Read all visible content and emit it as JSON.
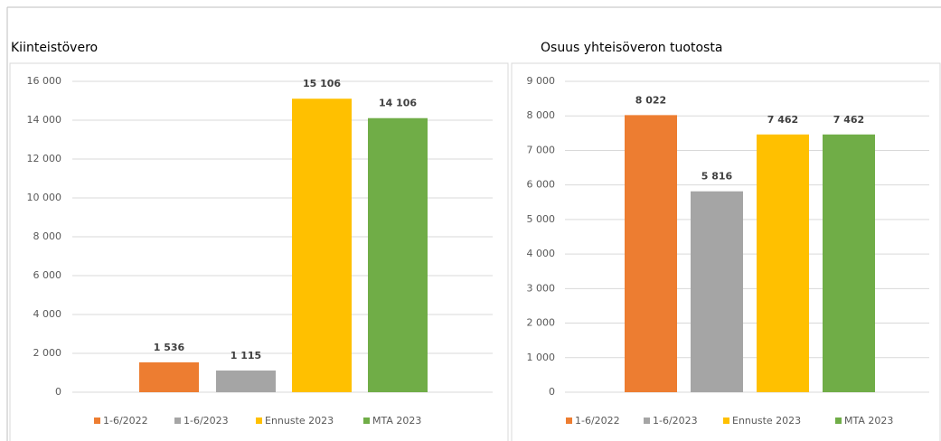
{
  "chart_data": [
    {
      "type": "bar",
      "title": "Kiinteistövero",
      "categories": [
        "1-6/2022",
        "1-6/2023",
        "Ennuste 2023",
        "MTA 2023"
      ],
      "values": [
        1536,
        1115,
        15106,
        14106
      ],
      "value_labels": [
        "1 536",
        "1 115",
        "15 106",
        "14 106"
      ],
      "colors": [
        "#ed7d31",
        "#a5a5a5",
        "#ffc000",
        "#70ad47"
      ],
      "ylim": [
        0,
        16000
      ],
      "yticks": [
        0,
        {
          "value": 2000,
          "label": "2 000"
        },
        {
          "value": 4000,
          "label": "4 000"
        },
        {
          "value": 6000,
          "label": "6 000"
        },
        {
          "value": 8000,
          "label": "8 000"
        },
        {
          "value": 10000,
          "label": "10 000"
        },
        {
          "value": 12000,
          "label": "12 000"
        },
        {
          "value": 14000,
          "label": "14 000"
        },
        {
          "value": 16000,
          "label": "16 000"
        }
      ],
      "grid": true,
      "legend": "bottom"
    },
    {
      "type": "bar",
      "title": "Osuus yhteisöveron tuotosta",
      "categories": [
        "1-6/2022",
        "1-6/2023",
        "Ennuste 2023",
        "MTA 2023"
      ],
      "values": [
        8022,
        5816,
        7462,
        7462
      ],
      "value_labels": [
        "8 022",
        "5 816",
        "7 462",
        "7 462"
      ],
      "colors": [
        "#ed7d31",
        "#a5a5a5",
        "#ffc000",
        "#70ad47"
      ],
      "ylim": [
        0,
        9000
      ],
      "yticks": [
        0,
        {
          "value": 1000,
          "label": "1 000"
        },
        {
          "value": 2000,
          "label": "2 000"
        },
        {
          "value": 3000,
          "label": "3 000"
        },
        {
          "value": 4000,
          "label": "4 000"
        },
        {
          "value": 5000,
          "label": "5 000"
        },
        {
          "value": 6000,
          "label": "6 000"
        },
        {
          "value": 7000,
          "label": "7 000"
        },
        {
          "value": 8000,
          "label": "8 000"
        },
        {
          "value": 9000,
          "label": "9 000"
        }
      ],
      "grid": true,
      "legend": "bottom"
    }
  ]
}
